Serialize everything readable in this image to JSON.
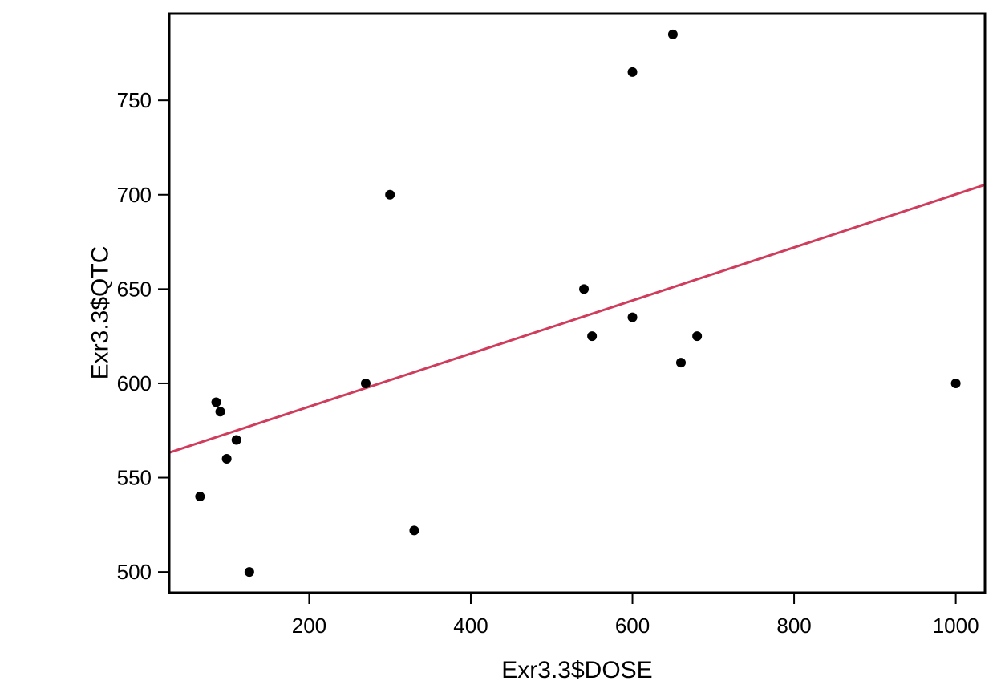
{
  "chart_data": {
    "type": "scatter",
    "title": "",
    "xlabel": "Exr3.3$DOSE",
    "ylabel": "Exr3.3$QTC",
    "xlim": [
      26.9,
      1036.1
    ],
    "ylim": [
      489,
      796
    ],
    "x_ticks": [
      200,
      400,
      600,
      800,
      1000
    ],
    "y_ticks": [
      500,
      550,
      600,
      650,
      700,
      750
    ],
    "x_tick_labels": [
      "200",
      "400",
      "600",
      "800",
      "1000"
    ],
    "y_tick_labels": [
      "500",
      "550",
      "600",
      "650",
      "700",
      "750"
    ],
    "grid": false,
    "legend": "none",
    "point_color": "#000000",
    "series": [
      {
        "x": [
          65,
          85,
          90,
          98,
          110,
          126,
          270,
          300,
          330,
          540,
          550,
          600,
          600,
          650,
          660,
          680,
          1000
        ],
        "y": [
          540,
          590,
          585,
          560,
          570,
          500,
          600,
          700,
          522,
          650,
          625,
          765,
          635,
          785,
          611,
          625,
          600
        ]
      }
    ],
    "fit_line": {
      "color": "#d03c5c",
      "intercept": 559.5,
      "slope": 0.1407
    }
  }
}
